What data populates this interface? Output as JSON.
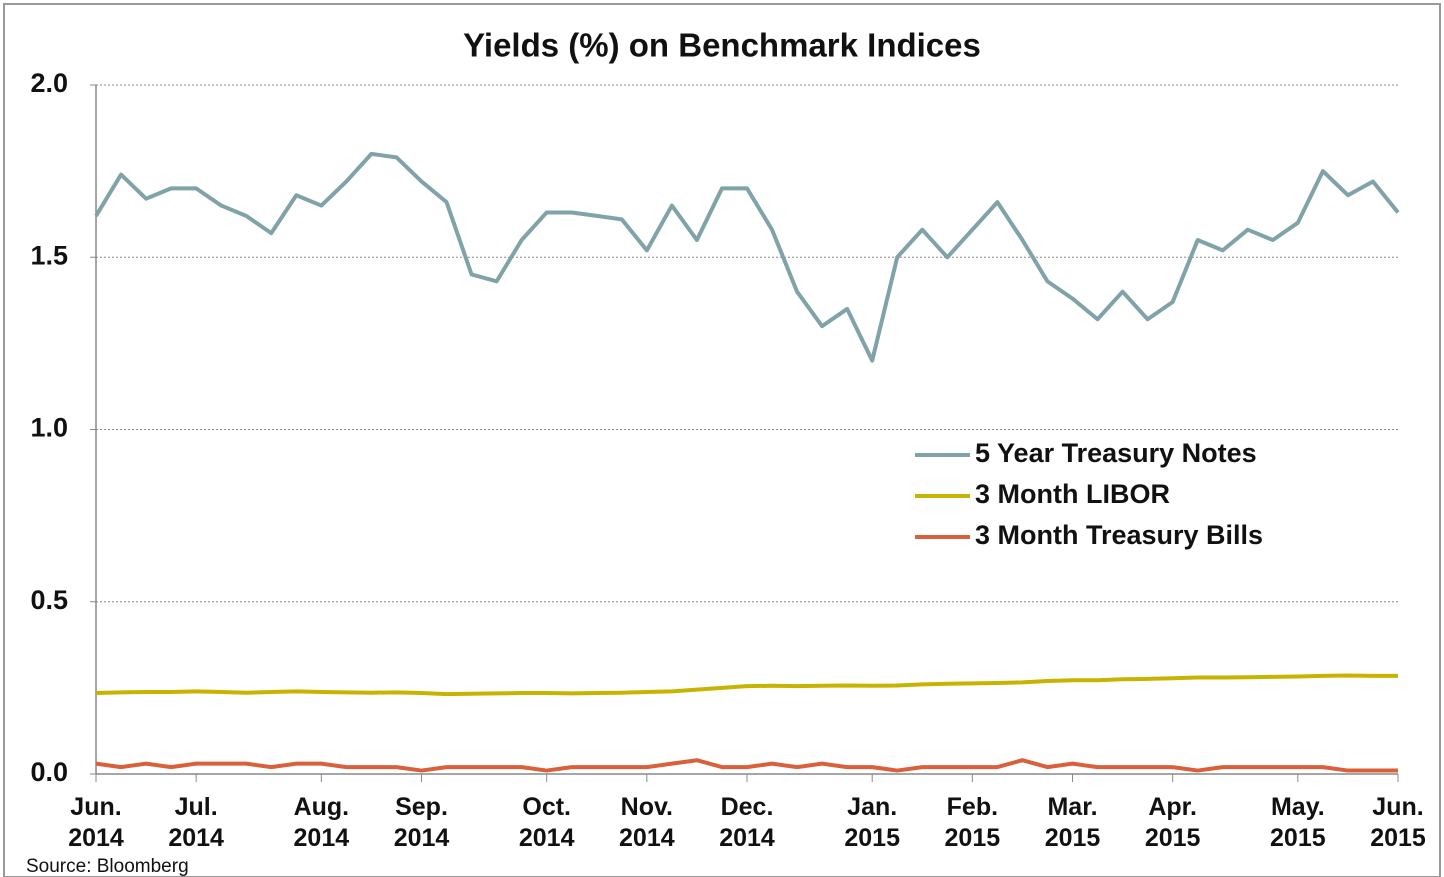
{
  "chart_data": {
    "type": "line",
    "title": "Yields (%) on Benchmark Indices",
    "source": "Source: Bloomberg",
    "categories": [
      "Jun. 2014",
      null,
      null,
      null,
      "Jul. 2014",
      null,
      null,
      null,
      null,
      "Aug. 2014",
      null,
      null,
      null,
      "Sep. 2014",
      null,
      null,
      null,
      null,
      "Oct. 2014",
      null,
      null,
      null,
      "Nov. 2014",
      null,
      null,
      null,
      "Dec. 2014",
      null,
      null,
      null,
      null,
      "Jan. 2015",
      null,
      null,
      null,
      "Feb. 2015",
      null,
      null,
      null,
      "Mar. 2015",
      null,
      null,
      null,
      "Apr. 2015",
      null,
      null,
      null,
      null,
      "May. 2015",
      null,
      null,
      null,
      "Jun. 2015"
    ],
    "series": [
      {
        "name": "5 Year Treasury Notes",
        "color": "#7fa3a8",
        "values": [
          1.62,
          1.74,
          1.67,
          1.7,
          1.7,
          1.65,
          1.62,
          1.57,
          1.68,
          1.65,
          1.72,
          1.8,
          1.79,
          1.72,
          1.66,
          1.45,
          1.43,
          1.55,
          1.63,
          1.63,
          1.62,
          1.61,
          1.52,
          1.65,
          1.55,
          1.7,
          1.7,
          1.58,
          1.4,
          1.3,
          1.35,
          1.2,
          1.5,
          1.58,
          1.5,
          1.58,
          1.66,
          1.55,
          1.43,
          1.38,
          1.32,
          1.4,
          1.32,
          1.37,
          1.55,
          1.52,
          1.58,
          1.55,
          1.6,
          1.75,
          1.68,
          1.72,
          1.63
        ]
      },
      {
        "name": "3 Month LIBOR",
        "color": "#c8b400",
        "values": [
          0.235,
          0.237,
          0.238,
          0.238,
          0.24,
          0.238,
          0.236,
          0.238,
          0.24,
          0.238,
          0.237,
          0.236,
          0.237,
          0.235,
          0.232,
          0.233,
          0.234,
          0.235,
          0.235,
          0.234,
          0.235,
          0.236,
          0.238,
          0.24,
          0.245,
          0.25,
          0.255,
          0.256,
          0.255,
          0.256,
          0.257,
          0.256,
          0.257,
          0.26,
          0.262,
          0.263,
          0.264,
          0.266,
          0.27,
          0.272,
          0.272,
          0.275,
          0.276,
          0.278,
          0.28,
          0.28,
          0.281,
          0.282,
          0.283,
          0.285,
          0.286,
          0.285,
          0.285
        ]
      },
      {
        "name": "3 Month Treasury Bills",
        "color": "#d9603b",
        "values": [
          0.03,
          0.02,
          0.03,
          0.02,
          0.03,
          0.03,
          0.03,
          0.02,
          0.03,
          0.03,
          0.02,
          0.02,
          0.02,
          0.01,
          0.02,
          0.02,
          0.02,
          0.02,
          0.01,
          0.02,
          0.02,
          0.02,
          0.02,
          0.03,
          0.04,
          0.02,
          0.02,
          0.03,
          0.02,
          0.03,
          0.02,
          0.02,
          0.01,
          0.02,
          0.02,
          0.02,
          0.02,
          0.04,
          0.02,
          0.03,
          0.02,
          0.02,
          0.02,
          0.02,
          0.01,
          0.02,
          0.02,
          0.02,
          0.02,
          0.02,
          0.01,
          0.01,
          0.01
        ]
      }
    ],
    "ylim": [
      0,
      2
    ],
    "yticks": [
      {
        "value": 0,
        "label": "0.0"
      },
      0.5,
      {
        "value": 1,
        "label": "1.0"
      },
      1.5,
      {
        "value": 2,
        "label": "2.0"
      }
    ],
    "grid": true,
    "legend": "right"
  }
}
